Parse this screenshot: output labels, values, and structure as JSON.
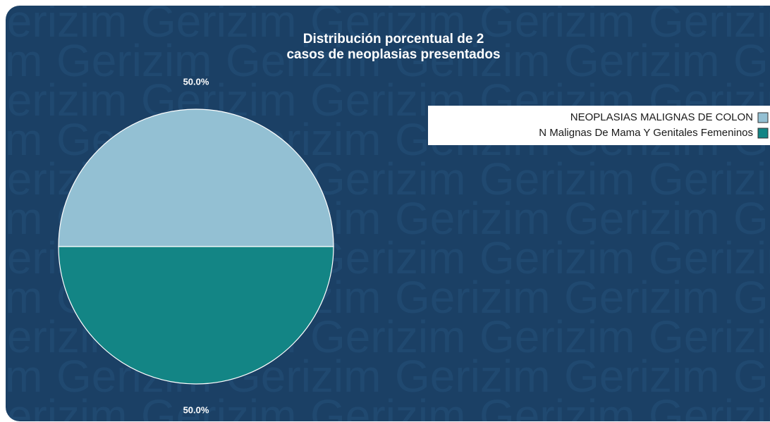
{
  "chart_data": {
    "type": "pie",
    "watermark": "Gerizim",
    "title": [
      "Distribución porcentual de 2",
      "casos de neoplasias presentados"
    ],
    "categories": [
      "NEOPLASIAS MALIGNAS DE COLON",
      "N Malignas De Mama Y Genitales Femeninos"
    ],
    "values": [
      50,
      50
    ],
    "value_labels": [
      "50.0%",
      "50.0%"
    ],
    "colors": [
      "#93c0d3",
      "#138585"
    ],
    "legend": "top-right"
  }
}
